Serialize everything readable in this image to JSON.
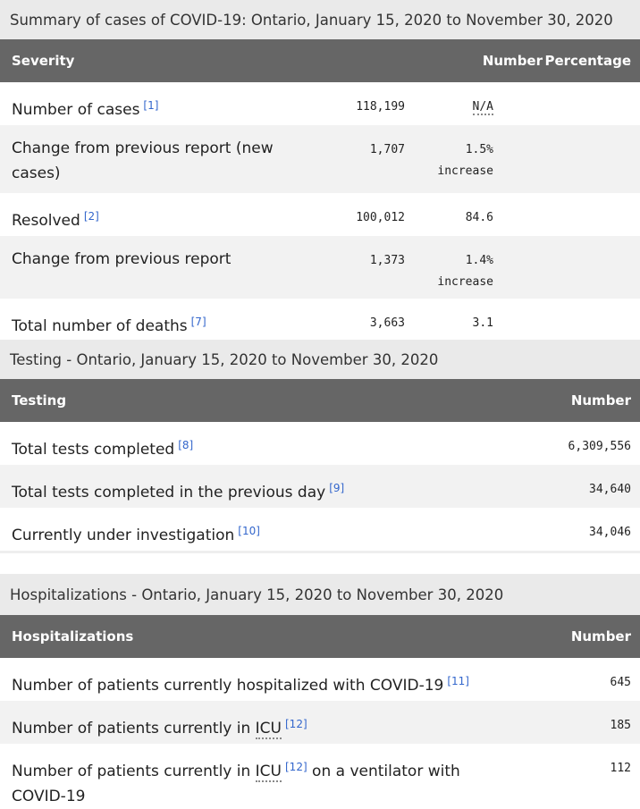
{
  "tables": [
    {
      "caption": "Summary of cases of COVID-19: Ontario, January 15, 2020 to November 30, 2020",
      "headers": [
        "Severity",
        "Number",
        "Percentage"
      ],
      "rows": [
        {
          "label": [
            {
              "text": "Number of cases"
            },
            {
              "text": "[1]",
              "style": "ref"
            }
          ],
          "number": "118,199",
          "percentage": [
            {
              "text": "N/A",
              "style": "abbr"
            }
          ]
        },
        {
          "label": [
            {
              "text": "Change from previous report (new cases)"
            }
          ],
          "number": "1,707",
          "percentage": [
            {
              "text": "1.5%"
            },
            {
              "text": "increase"
            }
          ]
        },
        {
          "label": [
            {
              "text": "Resolved"
            },
            {
              "text": "[2]",
              "style": "ref"
            }
          ],
          "number": "100,012",
          "percentage": [
            {
              "text": "84.6"
            }
          ]
        },
        {
          "label": [
            {
              "text": "Change from previous report"
            }
          ],
          "number": "1,373",
          "percentage": [
            {
              "text": "1.4%"
            },
            {
              "text": "increase"
            }
          ]
        },
        {
          "label": [
            {
              "text": "Total number of deaths"
            },
            {
              "text": "[7]",
              "style": "ref"
            }
          ],
          "number": "3,663",
          "percentage": [
            {
              "text": "3.1"
            }
          ]
        }
      ]
    },
    {
      "caption": "Testing - Ontario, January 15, 2020 to November 30, 2020",
      "headers": [
        "Testing",
        "Number"
      ],
      "rows": [
        {
          "label": [
            {
              "text": "Total tests completed"
            },
            {
              "text": "[8]",
              "style": "ref"
            }
          ],
          "number": "6,309,556"
        },
        {
          "label": [
            {
              "text": "Total tests completed in the previous day"
            },
            {
              "text": "[9]",
              "style": "ref"
            }
          ],
          "number": "34,640"
        },
        {
          "label": [
            {
              "text": "Currently under investigation"
            },
            {
              "text": "[10]",
              "style": "ref"
            }
          ],
          "number": "34,046"
        }
      ]
    },
    {
      "caption": "Hospitalizations - Ontario, January 15, 2020 to November 30, 2020",
      "headers": [
        "Hospitalizations",
        "Number"
      ],
      "rows": [
        {
          "label": [
            {
              "text": "Number of patients currently hospitalized with COVID-19"
            },
            {
              "text": "[11]",
              "style": "ref"
            }
          ],
          "number": "645"
        },
        {
          "label": [
            {
              "text": "Number of patients currently in"
            },
            {
              "text": "ICU",
              "style": "abbr"
            },
            {
              "text": "[12]",
              "style": "ref"
            }
          ],
          "number": "185"
        },
        {
          "label": [
            {
              "text": "Number of patients currently in"
            },
            {
              "text": "ICU",
              "style": "abbr"
            },
            {
              "text": "[12]",
              "style": "ref"
            },
            {
              "text": "on a ventilator with COVID-19"
            }
          ],
          "number": "112"
        }
      ]
    }
  ]
}
